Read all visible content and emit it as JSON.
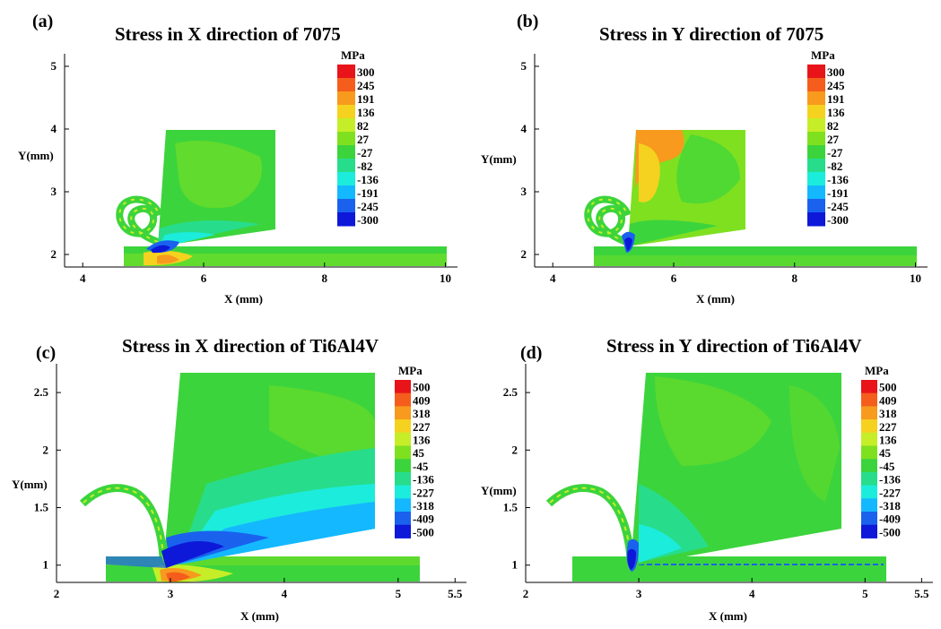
{
  "chart_data": [
    {
      "type": "heatmap",
      "panel": "(a)",
      "title": "Stress in X direction of 7075",
      "xlabel": "X (mm)",
      "ylabel": "Y(mm)",
      "xticks": [
        "4",
        "6",
        "8",
        "10"
      ],
      "yticks": [
        "2",
        "3",
        "4",
        "5"
      ],
      "xlim": [
        3.7,
        10.2
      ],
      "ylim": [
        1.8,
        5.2
      ],
      "colorbar_unit": "MPa",
      "colorbar_levels": [
        "300",
        "245",
        "191",
        "136",
        "82",
        "27",
        "-27",
        "-82",
        "-136",
        "-191",
        "-245",
        "-300"
      ],
      "x_ticks_val": [
        4,
        6,
        8,
        10
      ],
      "y_ticks_val": [
        2,
        3,
        4,
        5
      ]
    },
    {
      "type": "heatmap",
      "panel": "(b)",
      "title": "Stress in Y direction of 7075",
      "xlabel": "X (mm)",
      "ylabel": "Y(mm)",
      "xticks": [
        "4",
        "6",
        "8",
        "10"
      ],
      "yticks": [
        "2",
        "3",
        "4",
        "5"
      ],
      "xlim": [
        3.7,
        10.2
      ],
      "ylim": [
        1.8,
        5.2
      ],
      "colorbar_unit": "MPa",
      "colorbar_levels": [
        "300",
        "245",
        "191",
        "136",
        "82",
        "27",
        "-27",
        "-82",
        "-136",
        "-191",
        "-245",
        "-300"
      ],
      "x_ticks_val": [
        4,
        6,
        8,
        10
      ],
      "y_ticks_val": [
        2,
        3,
        4,
        5
      ]
    },
    {
      "type": "heatmap",
      "panel": "(c)",
      "title": "Stress in X direction of Ti6Al4V",
      "xlabel": "X (mm)",
      "ylabel": "Y(mm)",
      "xticks": [
        "2",
        "3",
        "4",
        "5",
        "5.5"
      ],
      "yticks": [
        "1",
        "1.5",
        "2",
        "2.5"
      ],
      "xlim": [
        2.0,
        5.6
      ],
      "ylim": [
        0.85,
        2.75
      ],
      "colorbar_unit": "MPa",
      "colorbar_levels": [
        "500",
        "409",
        "318",
        "227",
        "136",
        "45",
        "-45",
        "-136",
        "-227",
        "-318",
        "-409",
        "-500"
      ],
      "x_ticks_val": [
        2,
        3,
        4,
        5,
        5.5
      ],
      "y_ticks_val": [
        1,
        1.5,
        2,
        2.5
      ]
    },
    {
      "type": "heatmap",
      "panel": "(d)",
      "title": "Stress in Y direction of Ti6Al4V",
      "xlabel": "X (mm)",
      "ylabel": "Y(mm)",
      "xticks": [
        "2",
        "3",
        "4",
        "5",
        "5.5"
      ],
      "yticks": [
        "1",
        "1.5",
        "2",
        "2.5"
      ],
      "xlim": [
        2.0,
        5.6
      ],
      "ylim": [
        0.85,
        2.75
      ],
      "colorbar_unit": "MPa",
      "colorbar_levels": [
        "500",
        "409",
        "318",
        "227",
        "136",
        "45",
        "-45",
        "-136",
        "-227",
        "-318",
        "-409",
        "-500"
      ],
      "x_ticks_val": [
        2,
        3,
        4,
        5,
        5.5
      ],
      "y_ticks_val": [
        1,
        1.5,
        2,
        2.5
      ]
    }
  ],
  "colormap": [
    "#e8141a",
    "#f55d1c",
    "#f79a1e",
    "#f5d21f",
    "#c6ee28",
    "#7fe020",
    "#3cd43c",
    "#27dd8c",
    "#1cecdc",
    "#14b8ff",
    "#1a62ee",
    "#0d18d8"
  ]
}
